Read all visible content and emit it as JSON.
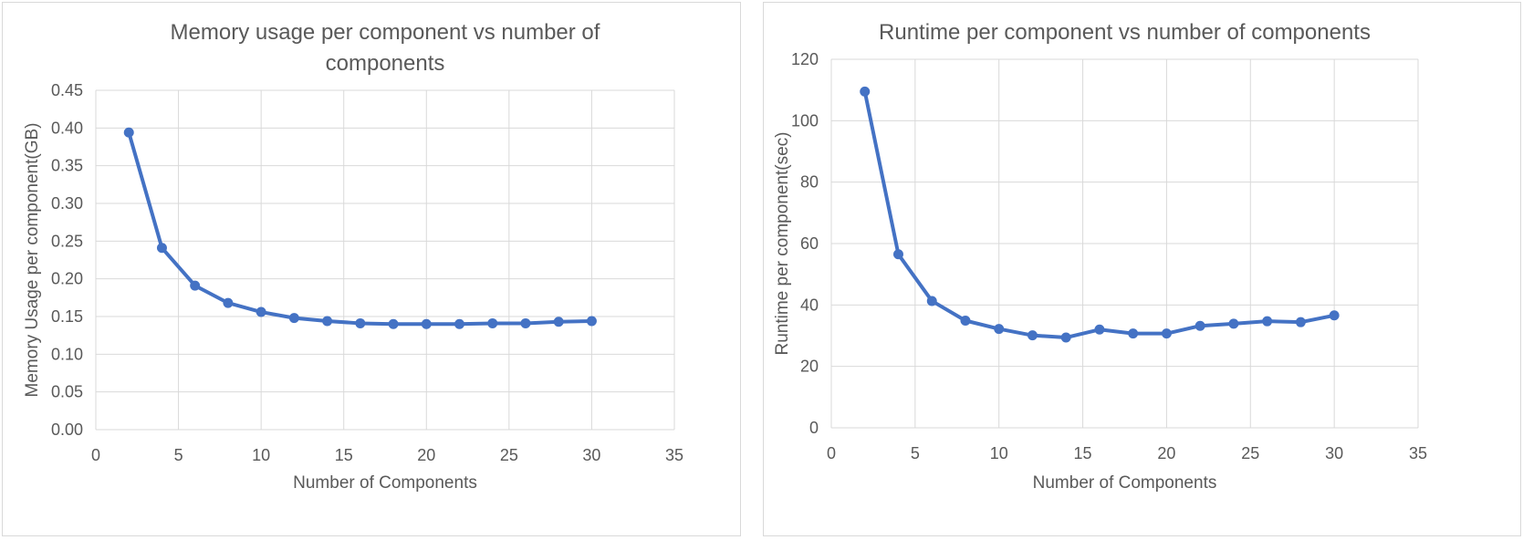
{
  "chart_data": [
    {
      "type": "line",
      "title": "Memory usage per component vs number of components",
      "title_lines": [
        "Memory usage per component vs number of",
        "components"
      ],
      "xlabel": "Number of Components",
      "ylabel": "Memory Usage per component(GB)",
      "xlim": [
        0,
        35
      ],
      "ylim": [
        0,
        0.45
      ],
      "xticks": [
        "0",
        "5",
        "10",
        "15",
        "20",
        "25",
        "30",
        "35"
      ],
      "yticks": [
        "0.00",
        "0.05",
        "0.10",
        "0.15",
        "0.20",
        "0.25",
        "0.30",
        "0.35",
        "0.40",
        "0.45"
      ],
      "grid": true,
      "line_color": "#4472c4",
      "x": [
        2,
        4,
        6,
        8,
        10,
        12,
        14,
        16,
        18,
        20,
        22,
        24,
        26,
        28,
        30
      ],
      "values": [
        0.394,
        0.241,
        0.191,
        0.168,
        0.156,
        0.148,
        0.144,
        0.141,
        0.14,
        0.14,
        0.14,
        0.141,
        0.141,
        0.143,
        0.144
      ]
    },
    {
      "type": "line",
      "title": "Runtime per component vs number of components",
      "title_lines": [
        "Runtime per component vs number of components"
      ],
      "xlabel": "Number of Components",
      "ylabel": "Runtime per component(sec)",
      "xlim": [
        0,
        35
      ],
      "ylim": [
        0,
        120
      ],
      "xticks": [
        "0",
        "5",
        "10",
        "15",
        "20",
        "25",
        "30",
        "35"
      ],
      "yticks": [
        "0",
        "20",
        "40",
        "60",
        "80",
        "100",
        "120"
      ],
      "grid": true,
      "line_color": "#4472c4",
      "x": [
        2,
        4,
        6,
        8,
        10,
        12,
        14,
        16,
        18,
        20,
        22,
        24,
        26,
        28,
        30
      ],
      "values": [
        109.5,
        56.5,
        41.3,
        34.9,
        32.2,
        30.1,
        29.4,
        32.0,
        30.7,
        30.7,
        33.2,
        33.9,
        34.7,
        34.4,
        36.6
      ]
    }
  ]
}
